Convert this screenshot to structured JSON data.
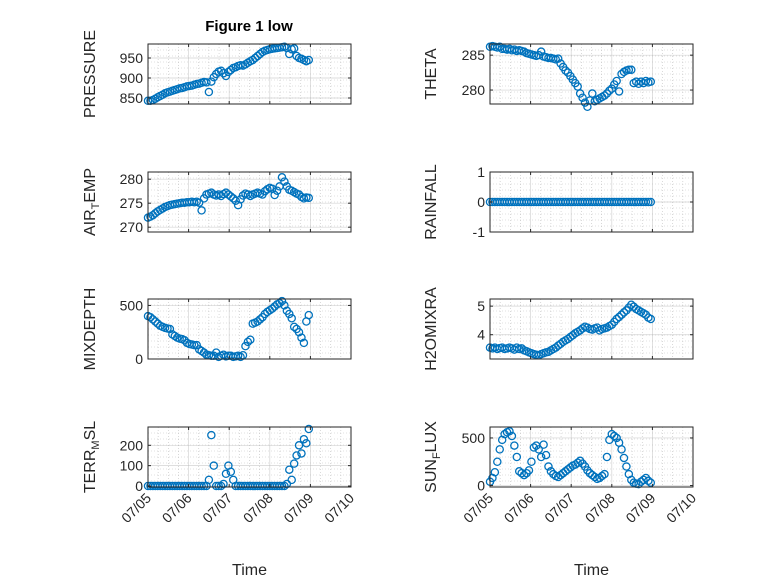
{
  "figure": {
    "title": "Figure 1 low",
    "background": "#ffffff"
  },
  "style": {
    "marker_color": "#0072bd",
    "axis_color": "#262626",
    "grid_color": "#b0b0b0"
  },
  "chart_data": [
    {
      "type": "scatter",
      "id": "pressure",
      "ylabel": "PRESSURE",
      "ylim": [
        835,
        985
      ],
      "yticks": [
        850,
        900,
        950
      ],
      "ytick_labels": [
        "850",
        "900",
        "950"
      ],
      "xlim": [
        0,
        5
      ],
      "xlabel": "",
      "marker": "circle-open",
      "grid": true,
      "x": [
        0.0,
        0.06,
        0.12,
        0.18,
        0.24,
        0.3,
        0.36,
        0.42,
        0.48,
        0.54,
        0.6,
        0.66,
        0.72,
        0.78,
        0.84,
        0.9,
        0.96,
        1.02,
        1.08,
        1.14,
        1.2,
        1.26,
        1.32,
        1.38,
        1.44,
        1.5,
        1.56,
        1.62,
        1.68,
        1.74,
        1.8,
        1.86,
        1.92,
        1.98,
        2.04,
        2.1,
        2.16,
        2.22,
        2.28,
        2.34,
        2.4,
        2.46,
        2.52,
        2.58,
        2.64,
        2.7,
        2.76,
        2.82,
        2.88,
        2.94,
        3.0,
        3.06,
        3.12,
        3.18,
        3.24,
        3.3,
        3.36,
        3.42,
        3.48,
        3.54,
        3.6,
        3.66,
        3.72,
        3.78,
        3.84,
        3.9,
        3.96
      ],
      "y": [
        843,
        843,
        845,
        848,
        852,
        855,
        858,
        862,
        864,
        866,
        868,
        870,
        872,
        874,
        875,
        877,
        879,
        880,
        881,
        883,
        885,
        886,
        888,
        890,
        889,
        865,
        891,
        902,
        910,
        916,
        918,
        912,
        905,
        915,
        920,
        925,
        927,
        930,
        932,
        931,
        934,
        938,
        942,
        945,
        950,
        955,
        960,
        965,
        968,
        970,
        972,
        973,
        974,
        975,
        976,
        977,
        978,
        975,
        960,
        972,
        974,
        955,
        950,
        948,
        945,
        942,
        945
      ]
    },
    {
      "type": "scatter",
      "id": "theta",
      "ylabel": "THETA",
      "ylim": [
        278,
        286.6
      ],
      "yticks": [
        280,
        285
      ],
      "ytick_labels": [
        "280",
        "285"
      ],
      "xlim": [
        0,
        5
      ],
      "xlabel": "",
      "marker": "circle-open",
      "grid": true,
      "x": [
        0.0,
        0.06,
        0.12,
        0.18,
        0.24,
        0.3,
        0.36,
        0.42,
        0.48,
        0.54,
        0.6,
        0.66,
        0.72,
        0.78,
        0.84,
        0.9,
        0.96,
        1.02,
        1.08,
        1.14,
        1.2,
        1.26,
        1.32,
        1.38,
        1.44,
        1.5,
        1.56,
        1.62,
        1.68,
        1.74,
        1.8,
        1.86,
        1.92,
        1.98,
        2.04,
        2.1,
        2.16,
        2.22,
        2.28,
        2.34,
        2.4,
        2.46,
        2.52,
        2.58,
        2.64,
        2.7,
        2.76,
        2.82,
        2.88,
        2.94,
        3.0,
        3.06,
        3.12,
        3.18,
        3.24,
        3.3,
        3.36,
        3.42,
        3.48,
        3.54,
        3.6,
        3.66,
        3.72,
        3.78,
        3.84,
        3.9,
        3.96
      ],
      "y": [
        286.2,
        286.3,
        286.2,
        286.1,
        286.2,
        285.9,
        285.9,
        285.8,
        285.9,
        285.7,
        285.8,
        285.6,
        285.7,
        285.6,
        285.5,
        285.3,
        285.2,
        285.1,
        285.0,
        284.9,
        285.0,
        285.5,
        284.8,
        284.7,
        284.6,
        284.6,
        284.5,
        284.4,
        284.5,
        283.8,
        283.3,
        282.8,
        282.5,
        282.0,
        281.5,
        281.0,
        280.5,
        279.5,
        278.9,
        278.2,
        277.6,
        278.5,
        279.5,
        278.4,
        278.6,
        278.8,
        279.0,
        279.2,
        279.5,
        279.9,
        280.2,
        280.8,
        281.3,
        279.8,
        282.3,
        282.6,
        282.8,
        282.9,
        282.9,
        281.0,
        281.2,
        280.9,
        281.2,
        281.0,
        281.3,
        281.1,
        281.2
      ]
    },
    {
      "type": "scatter",
      "id": "air_temp",
      "ylabel": "AIR_TEMP",
      "ylim": [
        269,
        281.5
      ],
      "yticks": [
        270,
        275,
        280
      ],
      "ytick_labels": [
        "270",
        "275",
        "280"
      ],
      "xlim": [
        0,
        5
      ],
      "xlabel": "",
      "marker": "circle-open",
      "grid": true,
      "x": [
        0.0,
        0.06,
        0.12,
        0.18,
        0.24,
        0.3,
        0.36,
        0.42,
        0.48,
        0.54,
        0.6,
        0.66,
        0.72,
        0.78,
        0.84,
        0.9,
        0.96,
        1.02,
        1.08,
        1.14,
        1.2,
        1.26,
        1.32,
        1.38,
        1.44,
        1.5,
        1.56,
        1.62,
        1.68,
        1.74,
        1.8,
        1.86,
        1.92,
        1.98,
        2.04,
        2.1,
        2.16,
        2.22,
        2.28,
        2.34,
        2.4,
        2.46,
        2.52,
        2.58,
        2.64,
        2.7,
        2.76,
        2.82,
        2.88,
        2.94,
        3.0,
        3.06,
        3.12,
        3.18,
        3.24,
        3.3,
        3.36,
        3.42,
        3.48,
        3.54,
        3.6,
        3.66,
        3.72,
        3.78,
        3.84,
        3.9,
        3.96
      ],
      "y": [
        272.0,
        272.2,
        272.5,
        272.9,
        273.3,
        273.6,
        273.9,
        274.2,
        274.4,
        274.6,
        274.7,
        274.8,
        274.9,
        275.0,
        275.1,
        275.1,
        275.2,
        275.2,
        275.3,
        275.2,
        275.3,
        275.1,
        273.5,
        276.0,
        276.8,
        277.0,
        277.2,
        276.8,
        276.6,
        276.8,
        276.5,
        276.9,
        277.2,
        276.8,
        276.4,
        276.0,
        275.5,
        274.6,
        275.8,
        276.6,
        277.0,
        276.8,
        276.5,
        276.8,
        277.0,
        277.2,
        277.0,
        276.8,
        277.5,
        277.9,
        278.2,
        278.0,
        276.7,
        277.6,
        278.5,
        280.4,
        279.5,
        278.5,
        277.8,
        277.6,
        277.3,
        277.0,
        276.8,
        276.3,
        276.0,
        276.2,
        276.1
      ]
    },
    {
      "type": "scatter",
      "id": "rainfall",
      "ylabel": "RAINFALL",
      "ylim": [
        -1,
        1
      ],
      "yticks": [
        -1,
        0,
        1
      ],
      "ytick_labels": [
        "-1",
        "0",
        "1"
      ],
      "xlim": [
        0,
        5
      ],
      "xlabel": "",
      "marker": "circle-open",
      "grid": true,
      "x": [
        0.0,
        0.06,
        0.12,
        0.18,
        0.24,
        0.3,
        0.36,
        0.42,
        0.48,
        0.54,
        0.6,
        0.66,
        0.72,
        0.78,
        0.84,
        0.9,
        0.96,
        1.02,
        1.08,
        1.14,
        1.2,
        1.26,
        1.32,
        1.38,
        1.44,
        1.5,
        1.56,
        1.62,
        1.68,
        1.74,
        1.8,
        1.86,
        1.92,
        1.98,
        2.04,
        2.1,
        2.16,
        2.22,
        2.28,
        2.34,
        2.4,
        2.46,
        2.52,
        2.58,
        2.64,
        2.7,
        2.76,
        2.82,
        2.88,
        2.94,
        3.0,
        3.06,
        3.12,
        3.18,
        3.24,
        3.3,
        3.36,
        3.42,
        3.48,
        3.54,
        3.6,
        3.66,
        3.72,
        3.78,
        3.84,
        3.9,
        3.96
      ],
      "y": [
        0,
        0,
        0,
        0,
        0,
        0,
        0,
        0,
        0,
        0,
        0,
        0,
        0,
        0,
        0,
        0,
        0,
        0,
        0,
        0,
        0,
        0,
        0,
        0,
        0,
        0,
        0,
        0,
        0,
        0,
        0,
        0,
        0,
        0,
        0,
        0,
        0,
        0,
        0,
        0,
        0,
        0,
        0,
        0,
        0,
        0,
        0,
        0,
        0,
        0,
        0,
        0,
        0,
        0,
        0,
        0,
        0,
        0,
        0,
        0,
        0,
        0,
        0,
        0,
        0,
        0,
        0
      ]
    },
    {
      "type": "scatter",
      "id": "mixdepth",
      "ylabel": "MIXDEPTH",
      "ylim": [
        0,
        560
      ],
      "yticks": [
        0,
        500
      ],
      "ytick_labels": [
        "0",
        "500"
      ],
      "xlim": [
        0,
        5
      ],
      "xlabel": "",
      "marker": "circle-open",
      "grid": true,
      "x": [
        0.0,
        0.06,
        0.12,
        0.18,
        0.24,
        0.3,
        0.36,
        0.42,
        0.48,
        0.54,
        0.6,
        0.66,
        0.72,
        0.78,
        0.84,
        0.9,
        0.96,
        1.02,
        1.08,
        1.14,
        1.2,
        1.26,
        1.32,
        1.38,
        1.44,
        1.5,
        1.56,
        1.62,
        1.68,
        1.74,
        1.8,
        1.86,
        1.92,
        1.98,
        2.04,
        2.1,
        2.16,
        2.22,
        2.28,
        2.34,
        2.4,
        2.46,
        2.52,
        2.58,
        2.64,
        2.7,
        2.76,
        2.82,
        2.88,
        2.94,
        3.0,
        3.06,
        3.12,
        3.18,
        3.24,
        3.3,
        3.36,
        3.42,
        3.48,
        3.54,
        3.6,
        3.66,
        3.72,
        3.78,
        3.84,
        3.9,
        3.96
      ],
      "y": [
        400,
        390,
        370,
        350,
        330,
        310,
        300,
        290,
        285,
        280,
        230,
        215,
        200,
        190,
        185,
        175,
        150,
        140,
        135,
        130,
        130,
        90,
        75,
        60,
        40,
        35,
        30,
        30,
        60,
        20,
        30,
        40,
        25,
        30,
        30,
        20,
        25,
        30,
        20,
        35,
        120,
        160,
        180,
        330,
        340,
        350,
        370,
        390,
        420,
        440,
        455,
        470,
        490,
        510,
        520,
        540,
        500,
        450,
        420,
        380,
        300,
        280,
        250,
        200,
        150,
        350,
        410
      ]
    },
    {
      "type": "scatter",
      "id": "h2omixra",
      "ylabel": "H2OMIXRA",
      "ylim": [
        3.15,
        5.25
      ],
      "yticks": [
        4,
        5
      ],
      "ytick_labels": [
        "4",
        "5"
      ],
      "xlim": [
        0,
        5
      ],
      "xlabel": "",
      "marker": "circle-open",
      "grid": true,
      "x": [
        0.0,
        0.06,
        0.12,
        0.18,
        0.24,
        0.3,
        0.36,
        0.42,
        0.48,
        0.54,
        0.6,
        0.66,
        0.72,
        0.78,
        0.84,
        0.9,
        0.96,
        1.02,
        1.08,
        1.14,
        1.2,
        1.26,
        1.32,
        1.38,
        1.44,
        1.5,
        1.56,
        1.62,
        1.68,
        1.74,
        1.8,
        1.86,
        1.92,
        1.98,
        2.04,
        2.1,
        2.16,
        2.22,
        2.28,
        2.34,
        2.4,
        2.46,
        2.52,
        2.58,
        2.64,
        2.7,
        2.76,
        2.82,
        2.88,
        2.94,
        3.0,
        3.06,
        3.12,
        3.18,
        3.24,
        3.3,
        3.36,
        3.42,
        3.48,
        3.54,
        3.6,
        3.66,
        3.72,
        3.78,
        3.84,
        3.9,
        3.96
      ],
      "y": [
        3.55,
        3.52,
        3.55,
        3.5,
        3.53,
        3.55,
        3.5,
        3.52,
        3.55,
        3.52,
        3.48,
        3.55,
        3.5,
        3.52,
        3.45,
        3.42,
        3.38,
        3.35,
        3.32,
        3.3,
        3.28,
        3.32,
        3.35,
        3.38,
        3.4,
        3.45,
        3.5,
        3.55,
        3.62,
        3.68,
        3.75,
        3.8,
        3.85,
        3.92,
        3.98,
        4.05,
        4.1,
        4.15,
        4.22,
        4.28,
        4.25,
        4.2,
        4.18,
        4.22,
        4.25,
        4.15,
        4.2,
        4.22,
        4.25,
        4.3,
        4.35,
        4.45,
        4.55,
        4.62,
        4.7,
        4.78,
        4.85,
        4.95,
        5.05,
        4.98,
        4.9,
        4.85,
        4.8,
        4.75,
        4.7,
        4.6,
        4.55
      ]
    },
    {
      "type": "scatter",
      "id": "terr_msl",
      "ylabel": "TERR_MSL",
      "ylim": [
        -5,
        290
      ],
      "yticks": [
        0,
        100,
        200
      ],
      "ytick_labels": [
        "0",
        "100",
        "200"
      ],
      "xlim": [
        0,
        5
      ],
      "xlabel": "Time",
      "xticks": [
        0,
        1,
        2,
        3,
        4,
        5
      ],
      "xtick_labels": [
        "07/05",
        "07/06",
        "07/07",
        "07/08",
        "07/09",
        "07/10"
      ],
      "marker": "circle-open",
      "grid": true,
      "x": [
        0.0,
        0.06,
        0.12,
        0.18,
        0.24,
        0.3,
        0.36,
        0.42,
        0.48,
        0.54,
        0.6,
        0.66,
        0.72,
        0.78,
        0.84,
        0.9,
        0.96,
        1.02,
        1.08,
        1.14,
        1.2,
        1.26,
        1.32,
        1.38,
        1.44,
        1.5,
        1.56,
        1.62,
        1.68,
        1.74,
        1.8,
        1.86,
        1.92,
        1.98,
        2.04,
        2.1,
        2.16,
        2.22,
        2.28,
        2.34,
        2.4,
        2.46,
        2.52,
        2.58,
        2.64,
        2.7,
        2.76,
        2.82,
        2.88,
        2.94,
        3.0,
        3.06,
        3.12,
        3.18,
        3.24,
        3.3,
        3.36,
        3.42,
        3.48,
        3.54,
        3.6,
        3.66,
        3.72,
        3.78,
        3.84,
        3.9,
        3.96
      ],
      "y": [
        0,
        0,
        0,
        0,
        0,
        0,
        0,
        0,
        0,
        0,
        0,
        0,
        0,
        0,
        0,
        0,
        0,
        0,
        0,
        0,
        0,
        0,
        0,
        0,
        0,
        30,
        250,
        100,
        0,
        0,
        0,
        10,
        60,
        100,
        70,
        30,
        0,
        0,
        0,
        0,
        0,
        0,
        0,
        0,
        0,
        0,
        0,
        0,
        0,
        0,
        0,
        0,
        0,
        0,
        0,
        0,
        0,
        10,
        80,
        30,
        110,
        150,
        200,
        160,
        230,
        210,
        280
      ]
    },
    {
      "type": "scatter",
      "id": "sun_flux",
      "ylabel": "SUN_FLUX",
      "ylim": [
        -15,
        615
      ],
      "yticks": [
        0,
        500
      ],
      "ytick_labels": [
        "0",
        "500"
      ],
      "xlim": [
        0,
        5
      ],
      "xlabel": "Time",
      "xticks": [
        0,
        1,
        2,
        3,
        4,
        5
      ],
      "xtick_labels": [
        "07/05",
        "07/06",
        "07/07",
        "07/08",
        "07/09",
        "07/10"
      ],
      "marker": "circle-open",
      "grid": true,
      "x": [
        0.0,
        0.06,
        0.12,
        0.18,
        0.24,
        0.3,
        0.36,
        0.42,
        0.48,
        0.54,
        0.6,
        0.66,
        0.72,
        0.78,
        0.84,
        0.9,
        0.96,
        1.02,
        1.08,
        1.14,
        1.2,
        1.26,
        1.32,
        1.38,
        1.44,
        1.5,
        1.56,
        1.62,
        1.68,
        1.74,
        1.8,
        1.86,
        1.92,
        1.98,
        2.04,
        2.1,
        2.16,
        2.22,
        2.28,
        2.34,
        2.4,
        2.46,
        2.52,
        2.58,
        2.64,
        2.7,
        2.76,
        2.82,
        2.88,
        2.94,
        3.0,
        3.06,
        3.12,
        3.18,
        3.24,
        3.3,
        3.36,
        3.42,
        3.48,
        3.54,
        3.6,
        3.66,
        3.72,
        3.78,
        3.84,
        3.9,
        3.96
      ],
      "y": [
        40,
        80,
        140,
        250,
        380,
        480,
        540,
        560,
        570,
        520,
        420,
        300,
        150,
        130,
        110,
        130,
        160,
        250,
        400,
        420,
        380,
        300,
        430,
        320,
        200,
        150,
        120,
        100,
        90,
        110,
        130,
        150,
        170,
        190,
        210,
        220,
        240,
        260,
        230,
        200,
        160,
        130,
        110,
        90,
        70,
        80,
        100,
        120,
        300,
        480,
        540,
        520,
        500,
        450,
        380,
        290,
        200,
        120,
        60,
        30,
        20,
        15,
        40,
        60,
        80,
        50,
        30
      ]
    }
  ]
}
